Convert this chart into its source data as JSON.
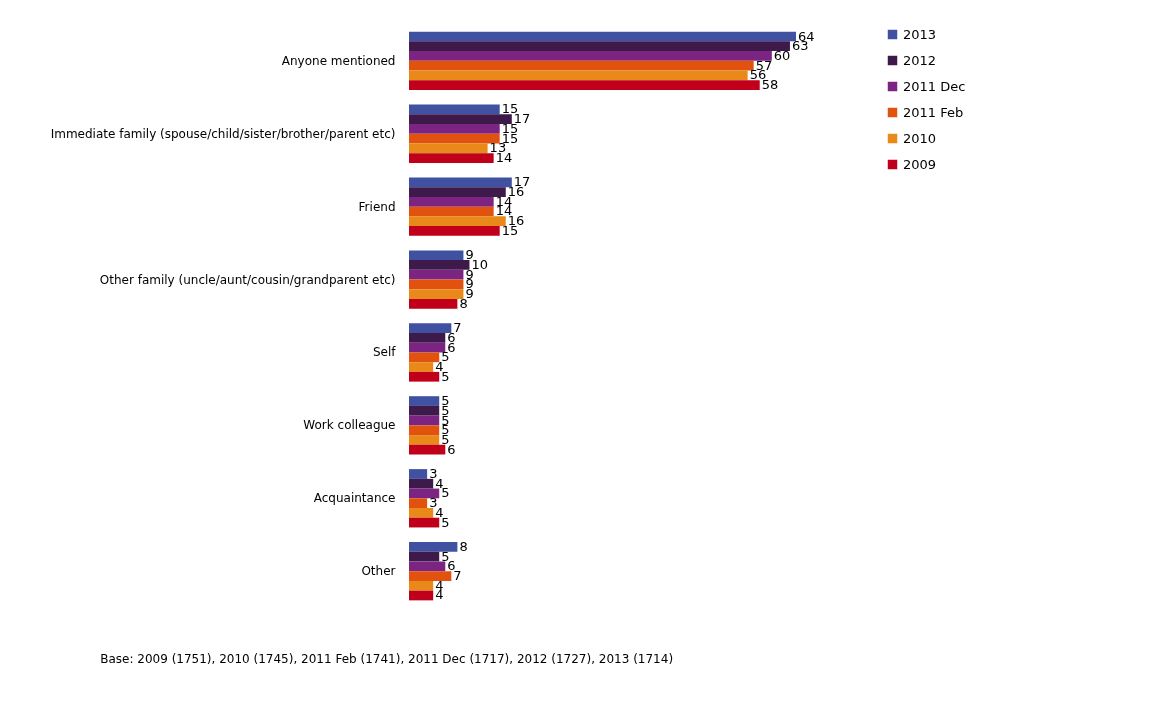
{
  "chart_data": {
    "type": "bar",
    "orientation": "horizontal",
    "categories": [
      "Anyone mentioned",
      "Immediate family (spouse/child/sister/brother/parent etc)",
      "Friend",
      "Other family (uncle/aunt/cousin/grandparent etc)",
      "Self",
      "Work colleague",
      "Acquaintance",
      "Other"
    ],
    "series": [
      {
        "name": "2013",
        "color": "#3f51a0",
        "values": [
          64,
          15,
          17,
          9,
          7,
          5,
          3,
          8
        ]
      },
      {
        "name": "2012",
        "color": "#3d1a4a",
        "values": [
          63,
          17,
          16,
          10,
          6,
          5,
          4,
          5
        ]
      },
      {
        "name": "2011 Dec",
        "color": "#7b2482",
        "values": [
          60,
          15,
          14,
          9,
          6,
          5,
          5,
          6
        ]
      },
      {
        "name": "2011 Feb",
        "color": "#e0520e",
        "values": [
          57,
          15,
          14,
          9,
          5,
          5,
          3,
          7
        ]
      },
      {
        "name": "2010",
        "color": "#e8891a",
        "values": [
          56,
          13,
          16,
          9,
          4,
          5,
          4,
          4
        ]
      },
      {
        "name": "2009",
        "color": "#c0001a",
        "values": [
          58,
          14,
          15,
          8,
          5,
          6,
          5,
          4
        ]
      }
    ],
    "data_labels": true,
    "legend": "right",
    "grid": false,
    "annotations": [
      "Base: 2009 (1751), 2010 (1745), 2011 Feb (1741), 2011 Dec (1717), 2012 (1727), 2013 (1714)"
    ]
  }
}
